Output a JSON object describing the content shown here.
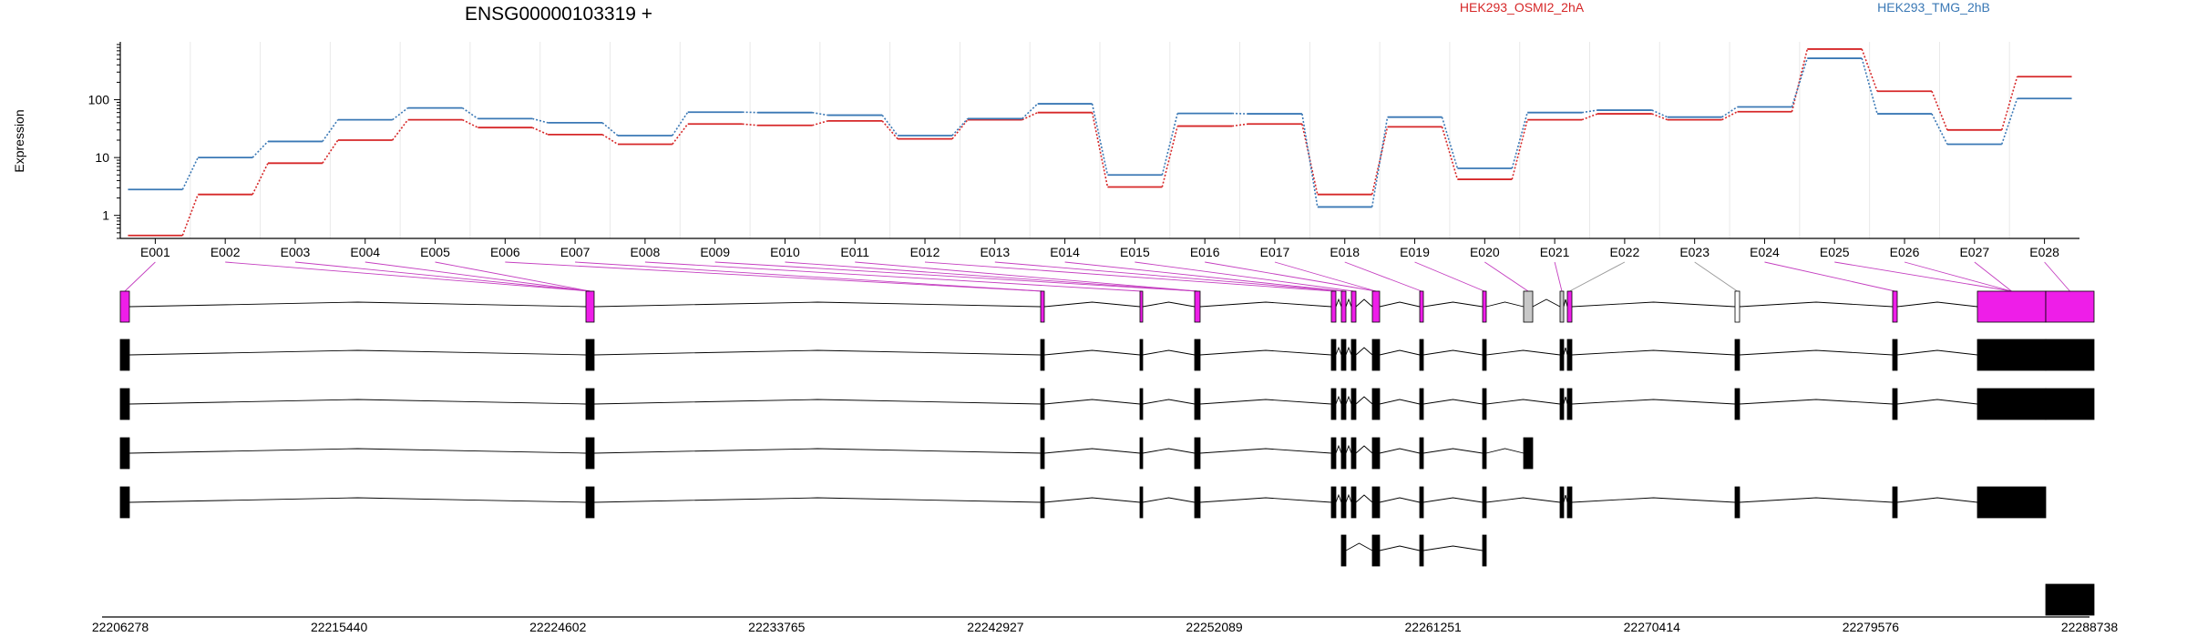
{
  "chart_data": {
    "type": "line",
    "title": "ENSG00000103319 +",
    "ylabel": "Expression",
    "yscale": "log",
    "yticks": [
      "1",
      "10",
      "100"
    ],
    "ylim": [
      0.4,
      1000
    ],
    "grid": true,
    "legend_position": "top",
    "categories": [
      "E001",
      "E002",
      "E003",
      "E004",
      "E005",
      "E006",
      "E007",
      "E008",
      "E009",
      "E010",
      "E011",
      "E012",
      "E013",
      "E014",
      "E015",
      "E016",
      "E017",
      "E018",
      "E019",
      "E020",
      "E021",
      "E022",
      "E023",
      "E024",
      "E025",
      "E026",
      "E027",
      "E028"
    ],
    "series": [
      {
        "name": "HEK293_OSMI2_2hA",
        "color": "#d62728",
        "values": [
          0.45,
          2.3,
          8,
          20,
          45,
          33,
          25,
          17,
          38,
          36,
          43,
          21,
          45,
          60,
          3.1,
          35,
          38,
          2.3,
          34,
          4.2,
          45,
          57,
          45,
          62,
          750,
          140,
          30,
          250
        ]
      },
      {
        "name": "HEK293_TMG_2hB",
        "color": "#3a78b5",
        "values": [
          2.8,
          10,
          19,
          45,
          72,
          47,
          40,
          24,
          61,
          60,
          54,
          24,
          47,
          85,
          5,
          58,
          57,
          1.4,
          50,
          6.5,
          60,
          66,
          50,
          75,
          520,
          57,
          17,
          105
        ]
      }
    ],
    "genome_ticks": [
      "22206278",
      "22215440",
      "22224602",
      "22233765",
      "22242927",
      "22252089",
      "22261251",
      "22270414",
      "22279576",
      "22288738"
    ],
    "highlight_color": "#ee1ee8",
    "exon_color": "#000000"
  }
}
